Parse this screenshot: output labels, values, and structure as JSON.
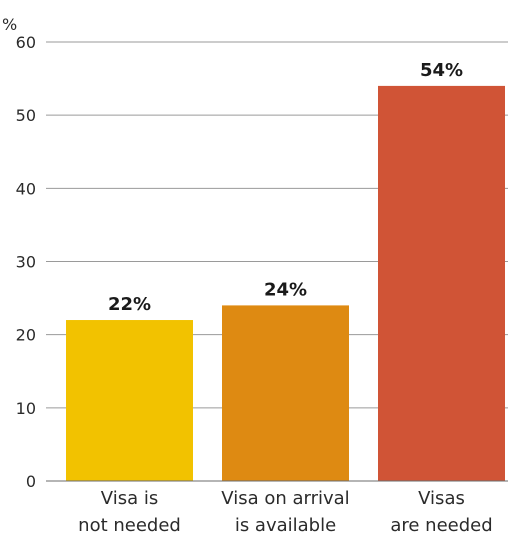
{
  "chart_data": {
    "type": "bar",
    "unit_label": "%",
    "categories": [
      [
        "Visa is",
        "not needed"
      ],
      [
        "Visa on arrival",
        "is available"
      ],
      [
        "Visas",
        "are needed"
      ]
    ],
    "values": [
      22,
      24,
      54
    ],
    "value_labels": [
      "22%",
      "24%",
      "54%"
    ],
    "colors": [
      "#f2c200",
      "#de8a12",
      "#d05436"
    ],
    "ylim": [
      0,
      60
    ],
    "yticks": [
      0,
      10,
      20,
      30,
      40,
      50,
      60
    ],
    "grid": true,
    "legend": "none",
    "title": "",
    "xlabel": "",
    "ylabel": ""
  }
}
